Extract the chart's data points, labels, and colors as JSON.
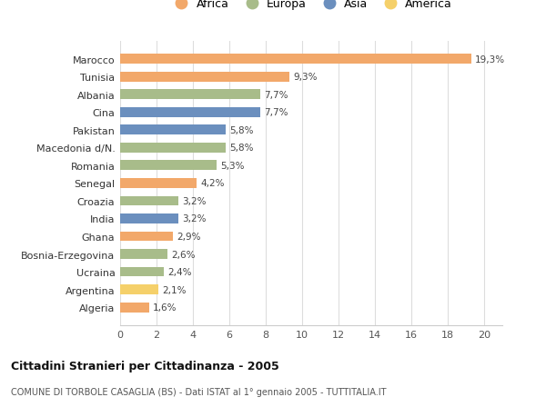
{
  "countries": [
    "Marocco",
    "Tunisia",
    "Albania",
    "Cina",
    "Pakistan",
    "Macedonia d/N.",
    "Romania",
    "Senegal",
    "Croazia",
    "India",
    "Ghana",
    "Bosnia-Erzegovina",
    "Ucraina",
    "Argentina",
    "Algeria"
  ],
  "values": [
    19.3,
    9.3,
    7.7,
    7.7,
    5.8,
    5.8,
    5.3,
    4.2,
    3.2,
    3.2,
    2.9,
    2.6,
    2.4,
    2.1,
    1.6
  ],
  "labels": [
    "19,3%",
    "9,3%",
    "7,7%",
    "7,7%",
    "5,8%",
    "5,8%",
    "5,3%",
    "4,2%",
    "3,2%",
    "3,2%",
    "2,9%",
    "2,6%",
    "2,4%",
    "2,1%",
    "1,6%"
  ],
  "continents": [
    "Africa",
    "Africa",
    "Europa",
    "Asia",
    "Asia",
    "Europa",
    "Europa",
    "Africa",
    "Europa",
    "Asia",
    "Africa",
    "Europa",
    "Europa",
    "America",
    "Africa"
  ],
  "colors": {
    "Africa": "#F2A86A",
    "Europa": "#A8BC8A",
    "Asia": "#6B8FBE",
    "America": "#F5D06A"
  },
  "legend_order": [
    "Africa",
    "Europa",
    "Asia",
    "America"
  ],
  "title": "Cittadini Stranieri per Cittadinanza - 2005",
  "subtitle": "COMUNE DI TORBOLE CASAGLIA (BS) - Dati ISTAT al 1° gennaio 2005 - TUTTITALIA.IT",
  "xlim": [
    0,
    21
  ],
  "xticks": [
    0,
    2,
    4,
    6,
    8,
    10,
    12,
    14,
    16,
    18,
    20
  ],
  "background_color": "#ffffff",
  "grid_color": "#dddddd",
  "bar_height": 0.55
}
